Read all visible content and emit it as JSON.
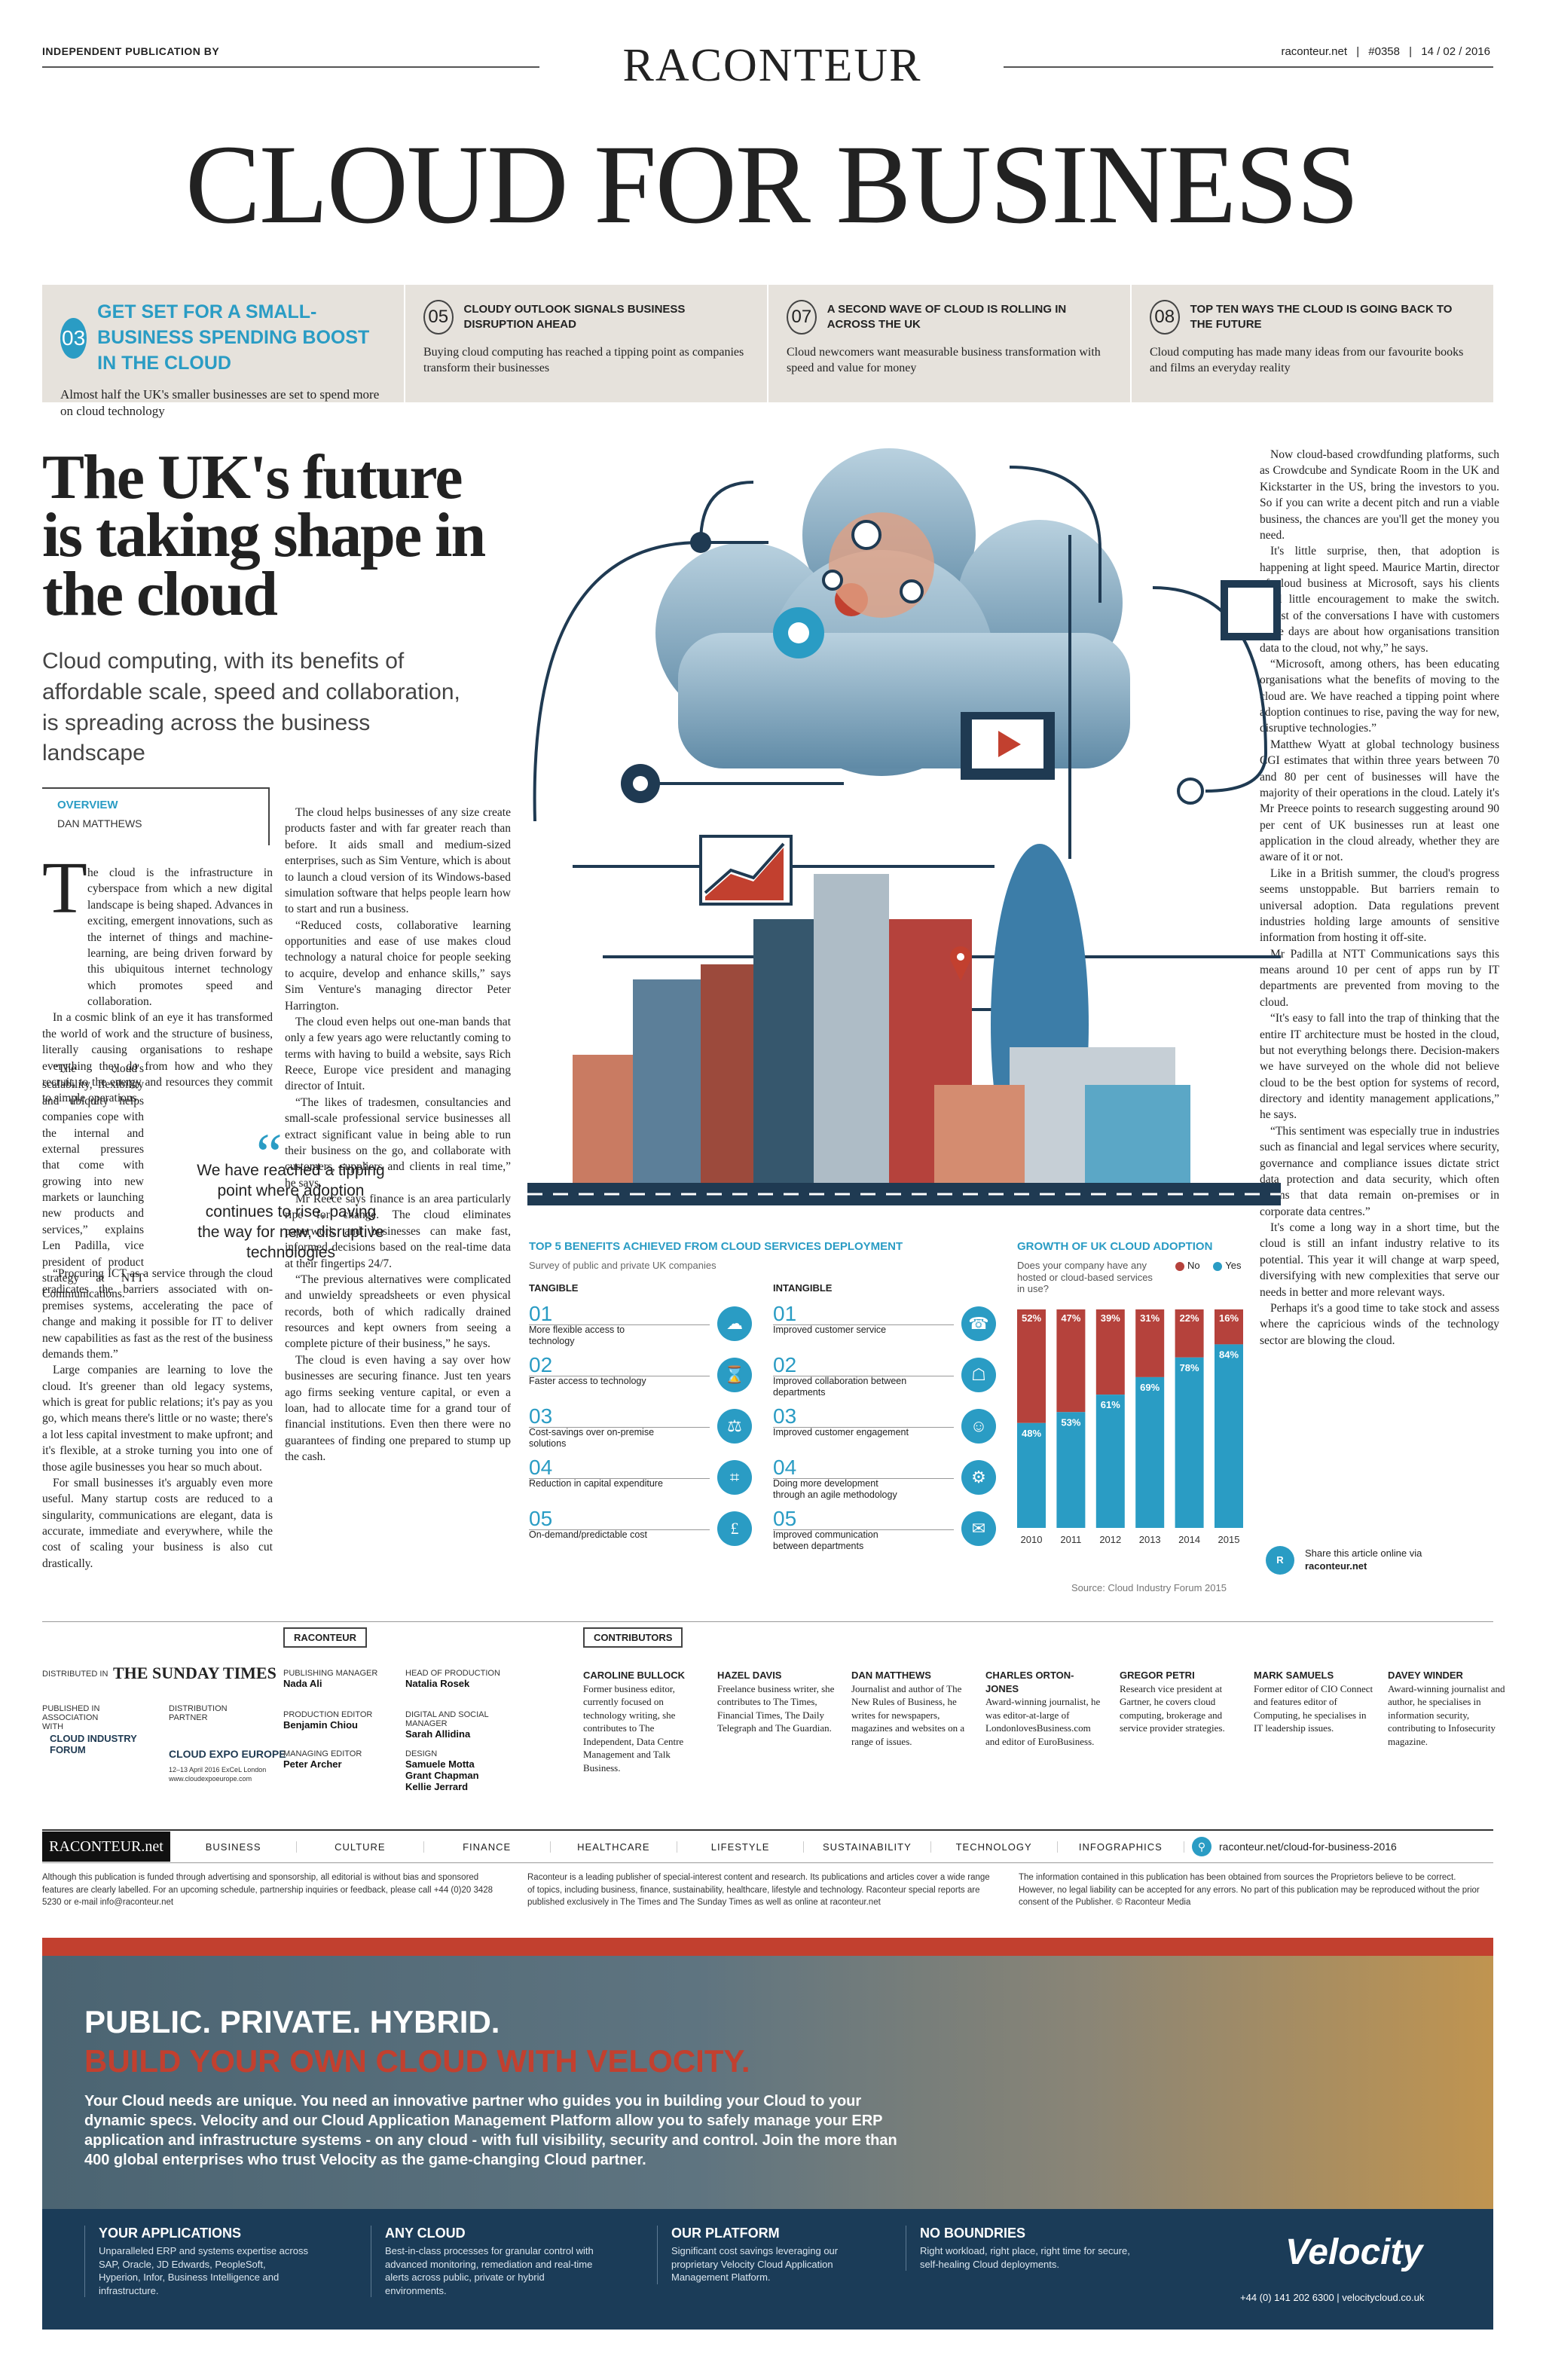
{
  "masthead": {
    "independent": "INDEPENDENT PUBLICATION BY",
    "logo": "RACONTEUR",
    "site": "raconteur.net",
    "issue": "#0358",
    "date": "14 / 02 / 2016",
    "title": "CLOUD FOR BUSINESS"
  },
  "contents": [
    {
      "num": "03",
      "heading": "GET SET FOR A SMALL-BUSINESS SPENDING BOOST IN THE CLOUD",
      "desc": "Almost half the UK's smaller businesses are set to spend more on cloud technology"
    },
    {
      "num": "05",
      "heading": "CLOUDY OUTLOOK SIGNALS BUSINESS DISRUPTION AHEAD",
      "desc": "Buying cloud computing has reached a tipping point as companies transform their businesses"
    },
    {
      "num": "07",
      "heading": "A SECOND WAVE OF CLOUD IS ROLLING IN ACROSS THE UK",
      "desc": "Cloud newcomers want measurable business transformation with speed and value for money"
    },
    {
      "num": "08",
      "heading": "TOP TEN WAYS THE CLOUD IS GOING BACK TO THE FUTURE",
      "desc": "Cloud computing has made many ideas from our favourite books and films an everyday reality"
    }
  ],
  "article": {
    "headline": "The UK's future is taking shape in the cloud",
    "standfirst": "Cloud computing, with its benefits of affordable scale, speed and collaboration, is spreading across the business landscape",
    "section": "OVERVIEW",
    "author": "DAN MATTHEWS",
    "dropcap": "T",
    "col1": [
      "he cloud is the infrastructure in cyberspace from which a new digital landscape is being shaped. Advances in exciting, emergent innovations, such as the internet of things and machine-learning, are being driven forward by this ubiquitous internet technology which promotes speed and collaboration.",
      "In a cosmic blink of an eye it has transformed the world of work and the structure of business, literally causing organisations to reshape everything they do from how and who they recruit, to the energy and resources they commit to simple operations.",
      "“The cloud's scalability, flexibility and ubiquity helps companies cope with the internal and external pressures that come with growing into new markets or launching new products and services,” explains Len Padilla, vice president of product strategy at NTT Communications.",
      "“Procuring ICT as a service through the cloud eradicates the barriers associated with on-premises systems, accelerating the pace of change and making it possible for IT to deliver new capabilities as fast as the rest of the business demands them.”",
      "Large companies are learning to love the cloud. It's greener than old legacy systems, which is great for public relations; it's pay as you go, which means there's little or no waste; there's a lot less capital investment to make upfront; and it's flexible, at a stroke turning you into one of those agile businesses you hear so much about.",
      "For small businesses it's arguably even more useful. Many startup costs are reduced to a singularity, communications are elegant, data is accurate, immediate and everywhere, while the cost of scaling your business is also cut drastically."
    ],
    "col2": [
      "The cloud helps businesses of any size create products faster and with far greater reach than before. It aids small and medium-sized enterprises, such as Sim Venture, which is about to launch a cloud version of its Windows-based simulation software that helps people learn how to start and run a business.",
      "“Reduced costs, collaborative learning opportunities and ease of use makes cloud technology a natural choice for people seeking to acquire, develop and enhance skills,” says Sim Venture's managing director Peter Harrington.",
      "The cloud even helps out one-man bands that only a few years ago were reluctantly coming to terms with having to build a website, says Rich Reece, Europe vice president and managing director of Intuit.",
      "“The likes of tradesmen, consultancies and small-scale professional service businesses all extract significant value in being able to run their business on the go, and collaborate with customers, suppliers and clients in real time,” he says.",
      "Mr Reece says finance is an area particularly ripe for change. The cloud eliminates paperwork and businesses can make fast, informed decisions based on the real-time data at their fingertips 24/7.",
      "“The previous alternatives were complicated and unwieldy spreadsheets or even physical records, both of which radically drained resources and kept owners from seeing a complete picture of their business,” he says.",
      "The cloud is even having a say over how businesses are securing finance. Just ten years ago firms seeking venture capital, or even a loan, had to allocate time for a grand tour of financial institutions. Even then there were no guarantees of finding one prepared to stump up the cash."
    ],
    "col3": [
      "Now cloud-based crowdfunding platforms, such as Crowdcube and Syndicate Room in the UK and Kickstarter in the US, bring the investors to you. So if you can write a decent pitch and run a viable business, the chances are you'll get the money you need.",
      "It's little surprise, then, that adoption is happening at light speed. Maurice Martin, director of cloud business at Microsoft, says his clients need little encouragement to make the switch. “Most of the conversations I have with customers these days are about how organisations transition data to the cloud, not why,” he says.",
      "“Microsoft, among others, has been educating organisations what the benefits of moving to the cloud are. We have reached a tipping point where adoption continues to rise, paving the way for new, disruptive technologies.”",
      "Matthew Wyatt at global technology business CGI estimates that within three years between 70 and 80 per cent of businesses will have the majority of their operations in the cloud. Lately it's Mr Preece points to research suggesting around 90 per cent of UK businesses run at least one application in the cloud already, whether they are aware of it or not.",
      "Like in a British summer, the cloud's progress seems unstoppable. But barriers remain to universal adoption. Data regulations prevent industries holding large amounts of sensitive information from hosting it off-site.",
      "Mr Padilla at NTT Communications says this means around 10 per cent of apps run by IT departments are prevented from moving to the cloud.",
      "“It's easy to fall into the trap of thinking that the entire IT architecture must be hosted in the cloud, but not everything belongs there. Decision-makers we have surveyed on the whole did not believe cloud to be the best option for systems of record, directory and identity management applications,” he says.",
      "“This sentiment was especially true in industries such as financial and legal services where security, governance and compliance issues dictate strict data protection and data security, which often means that data remain on-premises or in corporate data centres.”",
      "It's come a long way in a short time, but the cloud is still an infant industry relative to its potential. This year it will change at warp speed, diversifying with new complexities that serve our needs in better and more relevant ways.",
      "Perhaps it's a good time to take stock and assess where the capricious winds of the technology sector are blowing the cloud."
    ],
    "quote_mark": "“",
    "quote": "We have reached a tipping point where adoption continues to rise, paving the way for new, disruptive technologies"
  },
  "benefits": {
    "title": "TOP 5 BENEFITS ACHIEVED FROM CLOUD SERVICES DEPLOYMENT",
    "subtitle": "Survey of public and private UK companies",
    "tangible_label": "TANGIBLE",
    "intangible_label": "INTANGIBLE",
    "tangible": [
      {
        "n": "01",
        "t": "More flexible access to technology",
        "icon": "cloud-icon"
      },
      {
        "n": "02",
        "t": "Faster access to technology",
        "icon": "hourglass-icon"
      },
      {
        "n": "03",
        "t": "Cost-savings over on-premise solutions",
        "icon": "scales-icon"
      },
      {
        "n": "04",
        "t": "Reduction in capital expenditure",
        "icon": "calculator-icon"
      },
      {
        "n": "05",
        "t": "On-demand/predictable cost",
        "icon": "money-bag-icon"
      }
    ],
    "intangible": [
      {
        "n": "01",
        "t": "Improved customer service",
        "icon": "customer-chat-icon"
      },
      {
        "n": "02",
        "t": "Improved collaboration between departments",
        "icon": "handshake-icon"
      },
      {
        "n": "03",
        "t": "Improved customer engagement",
        "icon": "people-icon"
      },
      {
        "n": "04",
        "t": "Doing more development through an agile methodology",
        "icon": "gear-icon"
      },
      {
        "n": "05",
        "t": "Improved communication between departments",
        "icon": "speech-bubble-icon"
      }
    ]
  },
  "growth": {
    "title": "GROWTH OF UK CLOUD ADOPTION",
    "question": "Does your company have any hosted or cloud-based services in use?",
    "legend_no": "No",
    "legend_yes": "Yes",
    "color_no": "#b5423c",
    "color_yes": "#2a9cc4",
    "source": "Source: Cloud Industry Forum 2015"
  },
  "chart_data": {
    "type": "bar",
    "stacked": true,
    "title": "GROWTH OF UK CLOUD ADOPTION",
    "categories": [
      "2010",
      "2011",
      "2012",
      "2013",
      "2014",
      "2015"
    ],
    "series": [
      {
        "name": "No",
        "values": [
          52,
          47,
          39,
          31,
          22,
          16
        ]
      },
      {
        "name": "Yes",
        "values": [
          48,
          53,
          61,
          69,
          78,
          84
        ]
      }
    ],
    "ylim": [
      0,
      100
    ]
  },
  "share": {
    "text": "Share this article online via",
    "site": "raconteur.net",
    "logo": "R"
  },
  "credits": {
    "raconteur_tag": "RACONTEUR",
    "contributors_tag": "CONTRIBUTORS",
    "distributed_in": "DISTRIBUTED IN",
    "sunday_times": "THE SUNDAY TIMES",
    "published_assoc": "PUBLISHED IN ASSOCIATION WITH",
    "cif": "CLOUD INDUSTRY FORUM",
    "distribution_partner": "DISTRIBUTION PARTNER",
    "expo": "CLOUD EXPO EUROPE",
    "expo_sub": "12–13 April 2016 ExCeL London",
    "expo_url": "www.cloudexpoeurope.com",
    "staff": [
      {
        "role": "PUBLISHING MANAGER",
        "name": "Nada Ali"
      },
      {
        "role": "HEAD OF PRODUCTION",
        "name": "Natalia Rosek"
      },
      {
        "role": "PRODUCTION EDITOR",
        "name": "Benjamin Chiou"
      },
      {
        "role": "DIGITAL AND SOCIAL MANAGER",
        "name": "Sarah Allidina"
      },
      {
        "role": "MANAGING EDITOR",
        "name": "Peter Archer"
      },
      {
        "role": "DESIGN",
        "name": "Samuele Motta\nGrant Chapman\nKellie Jerrard"
      }
    ],
    "contributors": [
      {
        "name": "CAROLINE BULLOCK",
        "bio": "Former business editor, currently focused on technology writing, she contributes to The Independent, Data Centre Management and Talk Business."
      },
      {
        "name": "HAZEL DAVIS",
        "bio": "Freelance business writer, she contributes to The Times, Financial Times, The Daily Telegraph and The Guardian."
      },
      {
        "name": "DAN MATTHEWS",
        "bio": "Journalist and author of The New Rules of Business, he writes for newspapers, magazines and websites on a range of issues."
      },
      {
        "name": "CHARLES ORTON-JONES",
        "bio": "Award-winning journalist, he was editor-at-large of LondonlovesBusiness.com and editor of EuroBusiness."
      },
      {
        "name": "GREGOR PETRI",
        "bio": "Research vice president at Gartner, he covers cloud computing, brokerage and service provider strategies."
      },
      {
        "name": "MARK SAMUELS",
        "bio": "Former editor of CIO Connect and features editor of Computing, he specialises in IT leadership issues."
      },
      {
        "name": "DAVEY WINDER",
        "bio": "Award-winning journalist and author, he specialises in information security, contributing to Infosecurity magazine."
      }
    ]
  },
  "nav": {
    "logo": "RACONTEUR.net",
    "items": [
      "BUSINESS",
      "CULTURE",
      "FINANCE",
      "HEALTHCARE",
      "LIFESTYLE",
      "SUSTAINABILITY",
      "TECHNOLOGY",
      "INFOGRAPHICS"
    ],
    "url": "raconteur.net/cloud-for-business-2016"
  },
  "fine_print": [
    "Although this publication is funded through advertising and sponsorship, all editorial is without bias and sponsored features are clearly labelled. For an upcoming schedule, partnership inquiries or feedback, please call +44 (0)20 3428 5230 or e-mail info@raconteur.net",
    "Raconteur is a leading publisher of special-interest content and research. Its publications and articles cover a wide range of topics, including business, finance, sustainability, healthcare, lifestyle and technology. Raconteur special reports are published exclusively in The Times and The Sunday Times as well as online at raconteur.net",
    "The information contained in this publication has been obtained from sources the Proprietors believe to be correct. However, no legal liability can be accepted for any errors. No part of this publication may be reproduced without the prior consent of the Publisher. © Raconteur Media"
  ],
  "ad": {
    "line1": "PUBLIC. PRIVATE. HYBRID.",
    "line2": "BUILD YOUR OWN CLOUD WITH VELOCITY.",
    "body": "Your Cloud needs are unique. You need an innovative partner who guides you in building your Cloud to your dynamic specs. Velocity and our Cloud Application Management Platform allow you to safely manage your ERP application and infrastructure systems - on any cloud - with full visibility, security and control. Join the more than 400 global enterprises who trust Velocity as the game-changing Cloud partner.",
    "cols": [
      {
        "h": "YOUR APPLICATIONS",
        "d": "Unparalleled ERP and systems expertise across SAP, Oracle, JD Edwards, PeopleSoft, Hyperion, Infor, Business Intelligence and infrastructure."
      },
      {
        "h": "ANY CLOUD",
        "d": "Best-in-class processes for granular control with advanced monitoring, remediation and real-time alerts across public, private or hybrid environments."
      },
      {
        "h": "OUR PLATFORM",
        "d": "Significant cost savings leveraging our proprietary Velocity Cloud Application Management Platform."
      },
      {
        "h": "NO BOUNDRIES",
        "d": "Right workload, right place, right time for secure, self-healing Cloud deployments."
      }
    ],
    "logo": "Velocity",
    "contact": "+44 (0) 141 202 6300 | velocitycloud.co.uk"
  }
}
